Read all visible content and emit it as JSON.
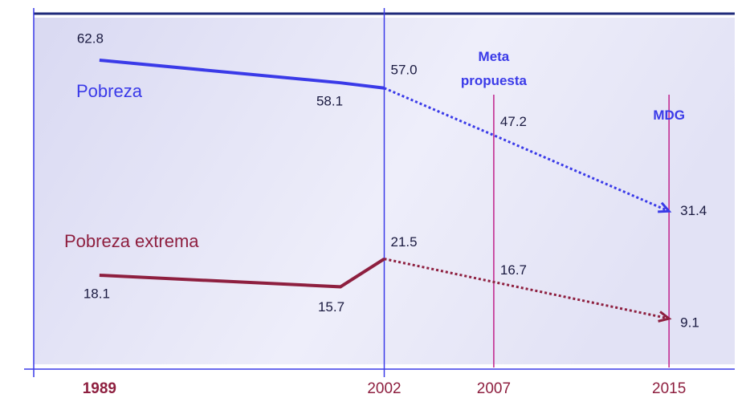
{
  "chart_data": {
    "type": "line",
    "x": [
      1989,
      2000,
      2002,
      2007,
      2015
    ],
    "xlim": [
      1986,
      2018
    ],
    "xticks": [
      1989,
      2002,
      2007,
      2015
    ],
    "forecast_start": 2002,
    "series": [
      {
        "name": "Pobreza",
        "color": "#3a3ae8",
        "values": [
          62.8,
          58.1,
          57.0,
          47.2,
          31.4
        ],
        "value_labels": [
          "62.8",
          "58.1",
          "57.0",
          "47.2",
          "31.4"
        ]
      },
      {
        "name": "Pobreza extrema",
        "color": "#8e1f3f",
        "values": [
          18.1,
          15.7,
          21.5,
          16.7,
          9.1
        ],
        "value_labels": [
          "18.1",
          "15.7",
          "21.5",
          "16.7",
          "9.1"
        ]
      }
    ],
    "annotations": [
      {
        "text": "Meta propuesta",
        "x": 2007
      },
      {
        "text": "MDG",
        "x": 2015
      }
    ]
  }
}
